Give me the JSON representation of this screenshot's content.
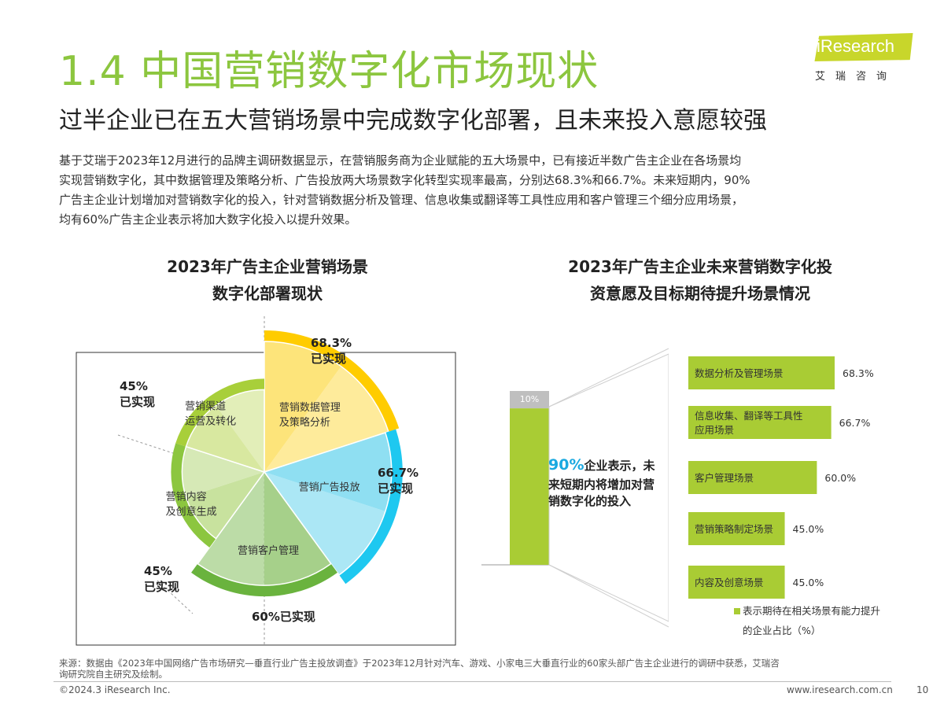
{
  "header": {
    "title": "1.4 中国营销数字化市场现状",
    "subtitle": "过半企业已在五大营销场景中完成数字化部署，且未来投入意愿较强"
  },
  "logo": {
    "brand": "iResearch",
    "cn": "艾瑞咨询",
    "accent": "#c8d62b"
  },
  "body_lines": [
    "基于艾瑞于2023年12月进行的品牌主调研数据显示，在营销服务商为企业赋能的五大场景中，已有接近半数广告主企业在各场景均",
    "实现营销数字化，其中数据管理及策略分析、广告投放两大场景数字化转型实现率最高，分别达68.3%和66.7%。未来短期内，90%",
    "广告主企业计划增加对营销数字化的投入，针对营销数据分析及管理、信息收集或翻译等工具性应用和客户管理三个细分应用场景，",
    "均有60%广告主企业表示将加大数字化投入以提升效果。"
  ],
  "chart_data": [
    {
      "type": "pie",
      "title_lines": [
        "2023年广告主企业营销场景",
        "数字化部署现状"
      ],
      "slices": [
        {
          "name_lines": [
            "营销数据管理",
            "及策略分析"
          ],
          "value": 68.3,
          "value_label_lines": [
            "68.3%",
            "已实现"
          ],
          "color": "#ffcc00",
          "fill": "#fde47a"
        },
        {
          "name_lines": [
            "营销广告投放"
          ],
          "value": 66.7,
          "value_label_lines": [
            "66.7%",
            "已实现"
          ],
          "color": "#1ec8f0",
          "fill": "#8fdff2"
        },
        {
          "name_lines": [
            "营销客户管理"
          ],
          "value": 60.0,
          "value_label_lines": [
            "60%已实现"
          ],
          "color": "#6ab33e",
          "fill": "#a6d08a"
        },
        {
          "name_lines": [
            "营销内容",
            "及创意生成"
          ],
          "value": 45.0,
          "value_label_lines": [
            "45%",
            "已实现"
          ],
          "color": "#8cc63f",
          "fill": "#c8e29e"
        },
        {
          "name_lines": [
            "营销渠道",
            "运营及转化"
          ],
          "value": 45.0,
          "value_label_lines": [
            "45%",
            "已实现"
          ],
          "color": "#a8cf3a",
          "fill": "#d8e8a0"
        }
      ]
    },
    {
      "type": "bar",
      "title_lines": [
        "2023年广告主企业未来营销数字化投",
        "资意愿及目标期待提升场景情况"
      ],
      "stack": {
        "highlight_value": 90,
        "rest_value": 10,
        "rest_label": "10%",
        "text_prefix": "90%",
        "text_lines": [
          "企业表示，未",
          "来短期内将增加对营",
          "销数字化的投入"
        ]
      },
      "categories": [
        [
          "数据分析及管理场景"
        ],
        [
          "信息收集、翻译等工具性",
          "应用场景"
        ],
        [
          "客户管理场景"
        ],
        [
          "营销策略制定场景"
        ],
        [
          "内容及创意场景"
        ]
      ],
      "values": [
        68.3,
        66.7,
        60.0,
        45.0,
        45.0
      ],
      "value_labels": [
        "68.3%",
        "66.7%",
        "60.0%",
        "45.0%",
        "45.0%"
      ],
      "legend_lines": [
        "表示期待在相关场景有能力提升",
        "的企业占比（%）"
      ],
      "xlim": [
        0,
        100
      ],
      "colors": {
        "bar": "#a9cc34",
        "rest": "#bfbfbf",
        "highlight_text": "#1aa9e0"
      }
    }
  ],
  "footer": {
    "source_lines": [
      "来源：数据由《2023年中国网络广告市场研究—垂直行业广告主投放调查》于2023年12月针对汽车、游戏、小家电三大垂直行业的60家头部广告主企业进行的调研中获悉，艾瑞咨",
      "询研究院自主研究及绘制。"
    ],
    "copyright": "©2024.3 iResearch Inc.",
    "website": "www.iresearch.com.cn",
    "page": "10"
  }
}
